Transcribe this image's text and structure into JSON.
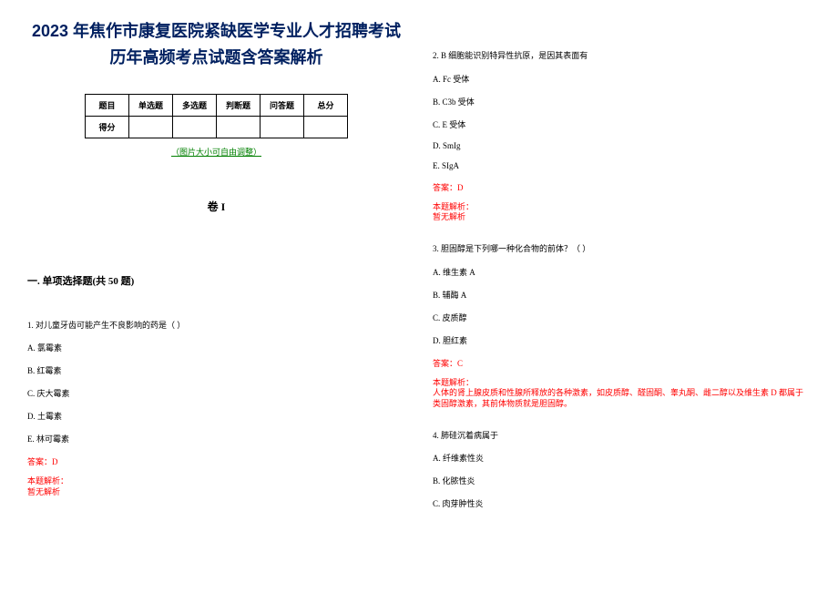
{
  "title": "2023 年焦作市康复医院紧缺医学专业人才招聘考试历年高频考点试题含答案解析",
  "table": {
    "headers": [
      "题目",
      "单选题",
      "多选题",
      "判断题",
      "问答题",
      "总分"
    ],
    "row_label": "得分"
  },
  "img_note": "（图片大小可自由调整）",
  "volume": "卷 I",
  "section": "一. 单项选择题(共 50 题)",
  "q1": {
    "stem": "1. 对儿童牙齿可能产生不良影响的药是（  ）",
    "a": "A. 氯霉素",
    "b": "B. 红霉素",
    "c": "C. 庆大霉素",
    "d": "D. 土霉素",
    "e": "E. 林可霉素",
    "answer": "答案：D",
    "explain_label": "本题解析：",
    "explain_text": "暂无解析"
  },
  "q2": {
    "stem": "2. B 细胞能识别特异性抗原，是因其表面有",
    "a": "A. Fc 受体",
    "b": "B. C3b 受体",
    "c": "C. E 受体",
    "d": "D. SmIg",
    "e": "E. SIgA",
    "answer": "答案：D",
    "explain_label": "本题解析：",
    "explain_text": "暂无解析"
  },
  "q3": {
    "stem": "3. 胆固醇是下列哪一种化合物的前体？（ ）",
    "a": "A. 维生素 A",
    "b": "B. 辅酶 A",
    "c": "C. 皮质醇",
    "d": "D. 胆红素",
    "answer": "答案：C",
    "explain_label": "本题解析：",
    "explain_text": "人体的肾上腺皮质和性腺所释放的各种激素，如皮质醇、醛固酮、睾丸酮、雌二醇以及维生素 D 都属于类固醇激素，其前体物质就是胆固醇。"
  },
  "q4": {
    "stem": "4. 肺硅沉着病属于",
    "a": "A. 纤维素性炎",
    "b": "B. 化脓性炎",
    "c": "C. 肉芽肿性炎"
  }
}
